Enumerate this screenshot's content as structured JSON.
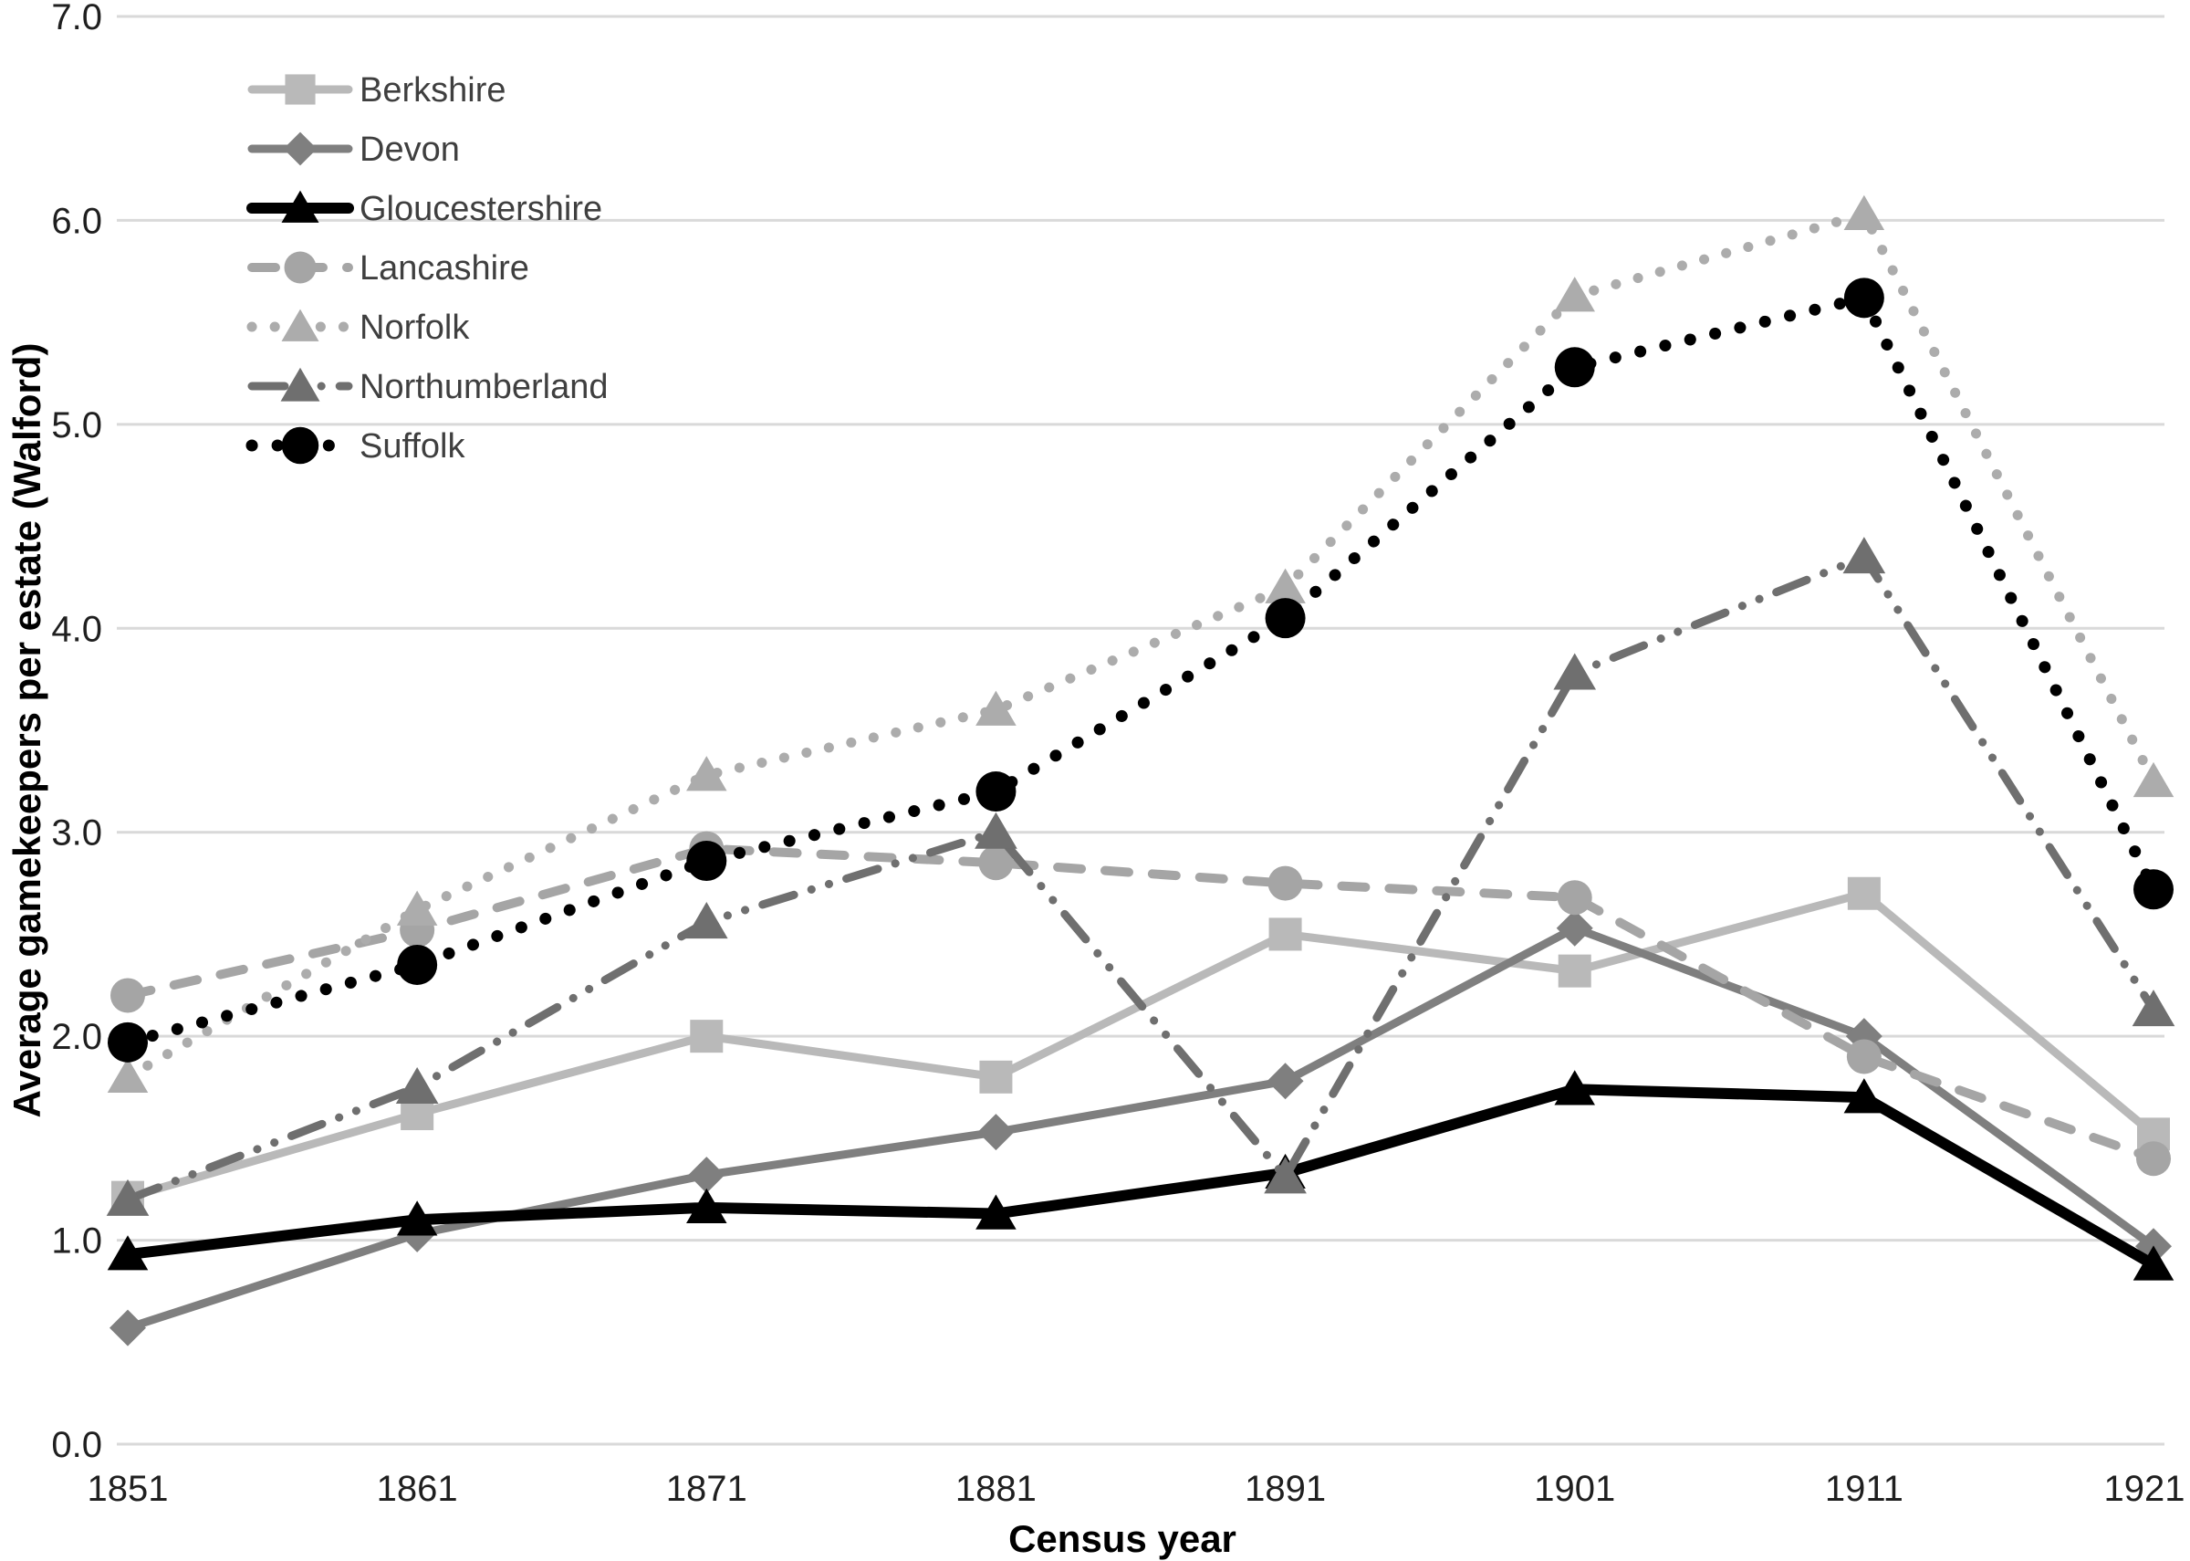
{
  "chart_data": {
    "type": "line",
    "title": "",
    "xlabel": "Census year",
    "ylabel": "Average gamekeepers per estate (Walford)",
    "categories": [
      "1851",
      "1861",
      "1871",
      "1881",
      "1891",
      "1901",
      "1911",
      "1921"
    ],
    "ylim": [
      0.0,
      7.0
    ],
    "ytick_step": 1.0,
    "ytick_labels": [
      "0.0",
      "1.0",
      "2.0",
      "3.0",
      "4.0",
      "5.0",
      "6.0",
      "7.0"
    ],
    "grid": "horizontal",
    "gridline_color": "#d9d9d9",
    "background_color": "#ffffff",
    "legend_position": "upper-left-inside",
    "series": [
      {
        "name": "Berkshire",
        "color": "#b9b9b9",
        "line_style": "solid",
        "marker": "square",
        "marker_size": 18,
        "values": [
          1.21,
          1.62,
          2.0,
          1.8,
          2.5,
          2.32,
          2.7,
          1.52
        ]
      },
      {
        "name": "Devon",
        "color": "#7f7f7f",
        "line_style": "solid",
        "marker": "diamond",
        "marker_size": 20,
        "values": [
          0.57,
          1.03,
          1.32,
          1.53,
          1.78,
          2.53,
          2.0,
          0.97
        ]
      },
      {
        "name": "Gloucestershire",
        "color": "#000000",
        "line_style": "solid-thick",
        "marker": "triangle",
        "marker_size": 21,
        "values": [
          0.93,
          1.1,
          1.16,
          1.13,
          1.33,
          1.74,
          1.7,
          0.88
        ]
      },
      {
        "name": "Lancashire",
        "color": "#a5a5a5",
        "line_style": "dashed",
        "marker": "circle",
        "marker_size": 19,
        "values": [
          2.2,
          2.52,
          2.92,
          2.85,
          2.75,
          2.68,
          1.9,
          1.4
        ]
      },
      {
        "name": "Norfolk",
        "color": "#acacac",
        "line_style": "dotted",
        "marker": "triangle",
        "marker_size": 21,
        "values": [
          1.8,
          2.62,
          3.28,
          3.6,
          4.2,
          5.63,
          6.03,
          3.25
        ]
      },
      {
        "name": "Northumberland",
        "color": "#6f6f6f",
        "line_style": "dash-dot-dot",
        "marker": "triangle",
        "marker_size": 22,
        "values": [
          1.2,
          1.75,
          2.56,
          3.0,
          1.31,
          3.78,
          4.35,
          2.13
        ]
      },
      {
        "name": "Suffolk",
        "color": "#000000",
        "line_style": "dotted-bold",
        "marker": "circle",
        "marker_size": 22,
        "values": [
          1.97,
          2.35,
          2.86,
          3.2,
          4.05,
          5.28,
          5.62,
          2.72
        ]
      }
    ]
  }
}
